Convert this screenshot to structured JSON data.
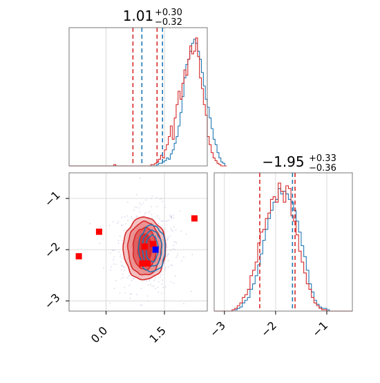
{
  "chart_data": [
    {
      "panel": "marginal-x",
      "type": "histogram",
      "title": {
        "value": "1.01",
        "plus": "+0.30",
        "minus": "−0.32"
      },
      "xlim": [
        -0.95,
        2.6
      ],
      "bin_edges_start": -0.95,
      "bin_width": 0.05,
      "series": [
        {
          "name": "",
          "color": "#1f77b4",
          "counts": [
            0,
            0,
            0,
            0,
            0,
            0,
            0,
            0,
            0,
            0,
            0,
            0,
            0,
            0,
            0,
            0,
            0,
            0,
            0,
            0,
            0,
            0,
            0,
            0,
            0,
            0,
            0,
            0,
            0,
            0,
            0,
            0,
            0,
            0,
            0,
            0,
            0,
            0,
            0,
            0,
            0,
            0,
            0,
            0,
            0,
            1,
            2,
            2,
            3,
            4,
            6,
            5,
            9,
            12,
            17,
            22,
            30,
            40,
            52,
            66,
            76,
            80,
            86,
            92,
            95,
            92,
            86,
            80,
            70,
            60,
            50,
            44,
            36,
            28,
            20,
            16,
            10,
            6,
            3,
            2,
            0
          ]
        },
        {
          "name": "",
          "color": "#d62728",
          "counts": [
            0,
            0,
            0,
            0,
            0,
            0,
            0,
            0,
            0,
            0,
            0,
            0,
            0,
            0,
            0,
            0,
            0,
            0,
            0,
            0,
            0,
            0,
            0,
            1,
            0,
            0,
            0,
            0,
            0,
            0,
            0,
            0,
            0,
            0,
            0,
            0,
            0,
            0,
            0,
            0,
            0,
            0,
            1,
            1,
            2,
            3,
            5,
            8,
            6,
            12,
            16,
            22,
            30,
            20,
            36,
            46,
            56,
            50,
            62,
            72,
            68,
            80,
            90,
            84,
            86,
            96,
            82,
            66,
            58,
            46,
            38,
            22,
            16,
            10,
            6,
            4,
            2,
            1,
            0,
            0,
            0
          ]
        }
      ],
      "quantile_lines": [
        {
          "color": "#d62728",
          "x": [
            0.69,
            1.31
          ]
        },
        {
          "color": "#1f77b4",
          "x": [
            0.92,
            1.45
          ]
        }
      ]
    },
    {
      "panel": "joint-2d",
      "type": "scatter",
      "xlim": [
        -0.95,
        2.6
      ],
      "ylim": [
        -3.2,
        -0.5
      ],
      "x_ticks": [
        "0.0",
        "1.5"
      ],
      "x_tick_values": [
        0.0,
        1.5
      ],
      "y_ticks": [
        "−1",
        "−2",
        "−3"
      ],
      "y_tick_values": [
        -1,
        -2,
        -3
      ],
      "contours": {
        "red": {
          "center": [
            0.99,
            -1.98
          ],
          "radii": [
            [
              0.34,
              0.58
            ],
            [
              0.6,
              0.82
            ],
            [
              0.86,
              1.04
            ],
            [
              1.09,
              1.22
            ]
          ]
        },
        "blue": {
          "center": [
            1.18,
            -1.98
          ],
          "radii": [
            [
              0.31,
              0.52
            ],
            [
              0.5,
              0.7
            ],
            [
              0.68,
              0.91
            ]
          ]
        }
      },
      "red_squares": [
        [
          -0.18,
          -1.65
        ],
        [
          -0.7,
          -2.13
        ],
        [
          2.27,
          -1.39
        ],
        [
          0.99,
          -1.94
        ],
        [
          1.21,
          -1.89
        ],
        [
          0.93,
          -2.27
        ],
        [
          1.07,
          -2.27
        ]
      ],
      "blue_square": [
        1.27,
        -2.0
      ]
    },
    {
      "panel": "marginal-y",
      "type": "histogram",
      "title": {
        "value": "−1.95",
        "plus": "+0.33",
        "minus": "−0.36"
      },
      "xlim": [
        -3.2,
        -0.5
      ],
      "x_ticks": [
        "−3",
        "−2",
        "−1"
      ],
      "x_tick_values": [
        -3,
        -2,
        -1
      ],
      "bin_edges_start": -3.2,
      "bin_width": 0.05,
      "series": [
        {
          "name": "",
          "color": "#1f77b4",
          "counts": [
            0,
            0,
            0,
            0,
            0,
            0,
            0,
            1,
            1,
            2,
            3,
            6,
            8,
            10,
            16,
            20,
            26,
            34,
            42,
            52,
            60,
            68,
            74,
            80,
            82,
            90,
            86,
            88,
            86,
            82,
            80,
            74,
            66,
            58,
            48,
            40,
            30,
            20,
            14,
            8,
            5,
            3,
            2,
            2,
            1,
            0,
            0,
            0,
            0,
            0,
            0,
            0,
            0,
            0
          ]
        },
        {
          "name": "",
          "color": "#d62728",
          "counts": [
            0,
            0,
            0,
            0,
            0,
            0,
            0,
            1,
            2,
            4,
            6,
            10,
            12,
            16,
            26,
            30,
            36,
            50,
            58,
            60,
            68,
            72,
            82,
            84,
            80,
            94,
            88,
            80,
            92,
            90,
            70,
            66,
            56,
            44,
            36,
            28,
            20,
            16,
            10,
            6,
            4,
            2,
            1,
            1,
            0,
            0,
            0,
            0,
            0,
            0,
            0,
            0,
            0,
            0
          ]
        }
      ],
      "quantile_lines": [
        {
          "color": "#d62728",
          "x": [
            -2.31,
            -1.62
          ]
        },
        {
          "color": "#1f77b4",
          "x": [
            -1.67
          ]
        }
      ]
    }
  ]
}
